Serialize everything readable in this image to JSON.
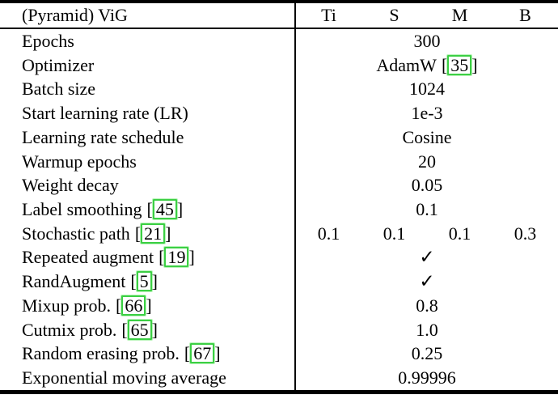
{
  "table": {
    "header": {
      "title": "(Pyramid) ViG",
      "columns": [
        "Ti",
        "S",
        "M",
        "B"
      ]
    },
    "rows": [
      {
        "label": "Epochs",
        "label_cite": "",
        "value": "300",
        "value_cite": "",
        "cols": null
      },
      {
        "label": "Optimizer",
        "label_cite": "",
        "value": "AdamW",
        "value_cite": "35",
        "cols": null
      },
      {
        "label": "Batch size",
        "label_cite": "",
        "value": "1024",
        "value_cite": "",
        "cols": null
      },
      {
        "label": "Start learning rate (LR)",
        "label_cite": "",
        "value": "1e-3",
        "value_cite": "",
        "cols": null
      },
      {
        "label": "Learning rate schedule",
        "label_cite": "",
        "value": "Cosine",
        "value_cite": "",
        "cols": null
      },
      {
        "label": "Warmup epochs",
        "label_cite": "",
        "value": "20",
        "value_cite": "",
        "cols": null
      },
      {
        "label": "Weight decay",
        "label_cite": "",
        "value": "0.05",
        "value_cite": "",
        "cols": null
      },
      {
        "label": "Label smoothing",
        "label_cite": "45",
        "value": "0.1",
        "value_cite": "",
        "cols": null
      },
      {
        "label": "Stochastic path",
        "label_cite": "21",
        "value": "",
        "value_cite": "",
        "cols": [
          "0.1",
          "0.1",
          "0.1",
          "0.3"
        ]
      },
      {
        "label": "Repeated augment",
        "label_cite": "19",
        "value": "✓",
        "value_cite": "",
        "cols": null
      },
      {
        "label": "RandAugment",
        "label_cite": "5",
        "value": "✓",
        "value_cite": "",
        "cols": null
      },
      {
        "label": "Mixup prob.",
        "label_cite": "66",
        "value": "0.8",
        "value_cite": "",
        "cols": null
      },
      {
        "label": "Cutmix prob.",
        "label_cite": "65",
        "value": "1.0",
        "value_cite": "",
        "cols": null
      },
      {
        "label": "Random erasing prob.",
        "label_cite": "67",
        "value": "0.25",
        "value_cite": "",
        "cols": null
      },
      {
        "label": "Exponential moving average",
        "label_cite": "",
        "value": "0.99996",
        "value_cite": "",
        "cols": null
      }
    ]
  },
  "punct": {
    "bracket_open": "[",
    "bracket_close": "]"
  },
  "icons": {
    "checkmark": "✓"
  },
  "colors": {
    "citation_box_green": "#3ccf44",
    "rule_black": "#000000",
    "text": "#000000",
    "background": "#ffffff"
  }
}
